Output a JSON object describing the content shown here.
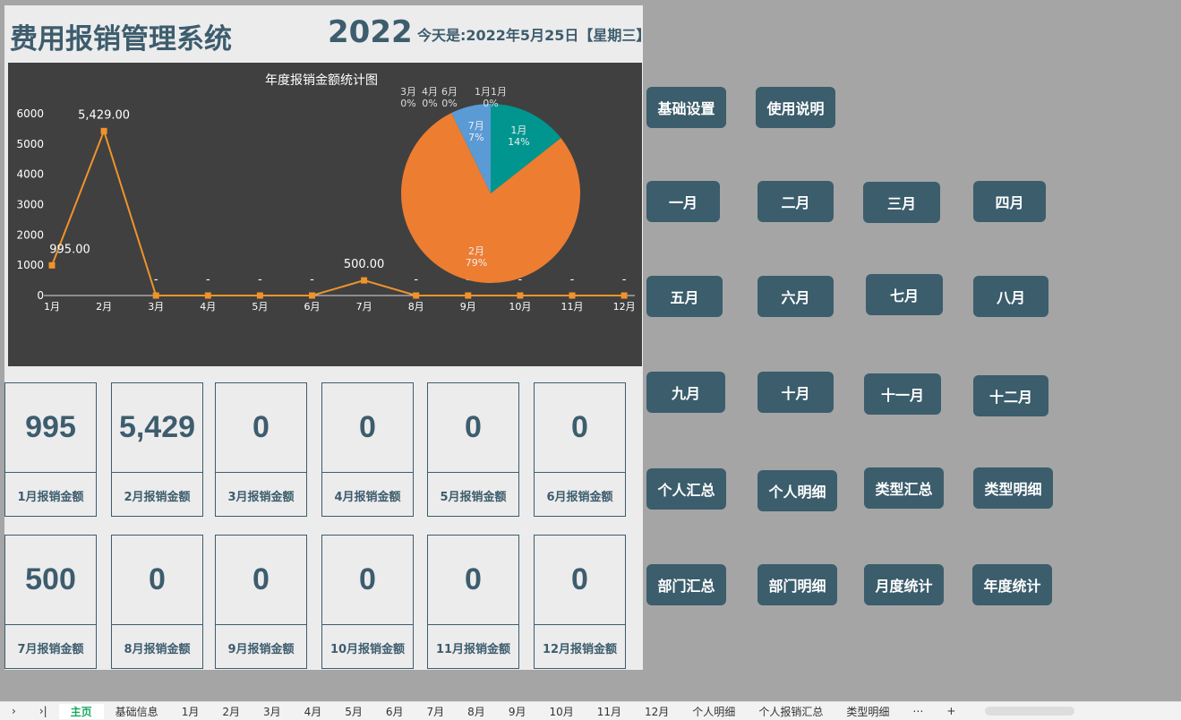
{
  "header": {
    "title": "费用报销管理系统",
    "year": "2022",
    "today": "今天是:2022年5月25日【星期三】"
  },
  "chart_data": [
    {
      "type": "line",
      "title": "年度报销金额统计图",
      "categories": [
        "1月",
        "2月",
        "3月",
        "4月",
        "5月",
        "6月",
        "7月",
        "8月",
        "9月",
        "10月",
        "11月",
        "12月"
      ],
      "values": [
        995,
        5429,
        0,
        0,
        0,
        0,
        500,
        0,
        0,
        0,
        0,
        0
      ],
      "data_labels": [
        "995.00",
        "5,429.00",
        "-",
        "-",
        "-",
        "-",
        "500.00",
        "-",
        "-",
        "-",
        "-",
        "-"
      ],
      "yticks": [
        "0",
        "1000",
        "2000",
        "3000",
        "4000",
        "5000",
        "6000"
      ],
      "ylim": [
        0,
        6000
      ],
      "grid": false,
      "color": "#f0932b"
    },
    {
      "type": "pie",
      "slices": [
        {
          "label": "1月",
          "value": 995,
          "pct": "14%",
          "color": "#00968f"
        },
        {
          "label": "2月",
          "value": 5429,
          "pct": "79%",
          "color": "#ed7d31"
        },
        {
          "label": "7月",
          "value": 500,
          "pct": "7%",
          "color": "#5b9bd5"
        }
      ],
      "zero_labels": [
        {
          "label": "3月",
          "pct": "0%"
        },
        {
          "label": "4月",
          "pct": "0%"
        },
        {
          "label": "6月",
          "pct": "0%"
        },
        {
          "label": "1月1月",
          "pct": "0%"
        }
      ]
    }
  ],
  "cards": [
    {
      "value": "995",
      "label": "1月报销金额"
    },
    {
      "value": "5,429",
      "label": "2月报销金额"
    },
    {
      "value": "0",
      "label": "3月报销金额"
    },
    {
      "value": "0",
      "label": "4月报销金额"
    },
    {
      "value": "0",
      "label": "5月报销金额"
    },
    {
      "value": "0",
      "label": "6月报销金额"
    },
    {
      "value": "500",
      "label": "7月报销金额"
    },
    {
      "value": "0",
      "label": "8月报销金额"
    },
    {
      "value": "0",
      "label": "9月报销金额"
    },
    {
      "value": "0",
      "label": "10月报销金额"
    },
    {
      "value": "0",
      "label": "11月报销金额"
    },
    {
      "value": "0",
      "label": "12月报销金额"
    }
  ],
  "buttons": [
    "基础设置",
    "使用说明",
    "一月",
    "二月",
    "三月",
    "四月",
    "五月",
    "六月",
    "七月",
    "八月",
    "九月",
    "十月",
    "十一月",
    "十二月",
    "个人汇总",
    "个人明细",
    "类型汇总",
    "类型明细",
    "部门汇总",
    "部门明细",
    "月度统计",
    "年度统计"
  ],
  "tabs": [
    "主页",
    "基础信息",
    "1月",
    "2月",
    "3月",
    "4月",
    "5月",
    "6月",
    "7月",
    "8月",
    "9月",
    "10月",
    "11月",
    "12月",
    "个人明细",
    "个人报销汇总",
    "类型明细"
  ],
  "tabnav": {
    "next": "›",
    "last": "›|",
    "more": "⋯",
    "add": "+"
  }
}
